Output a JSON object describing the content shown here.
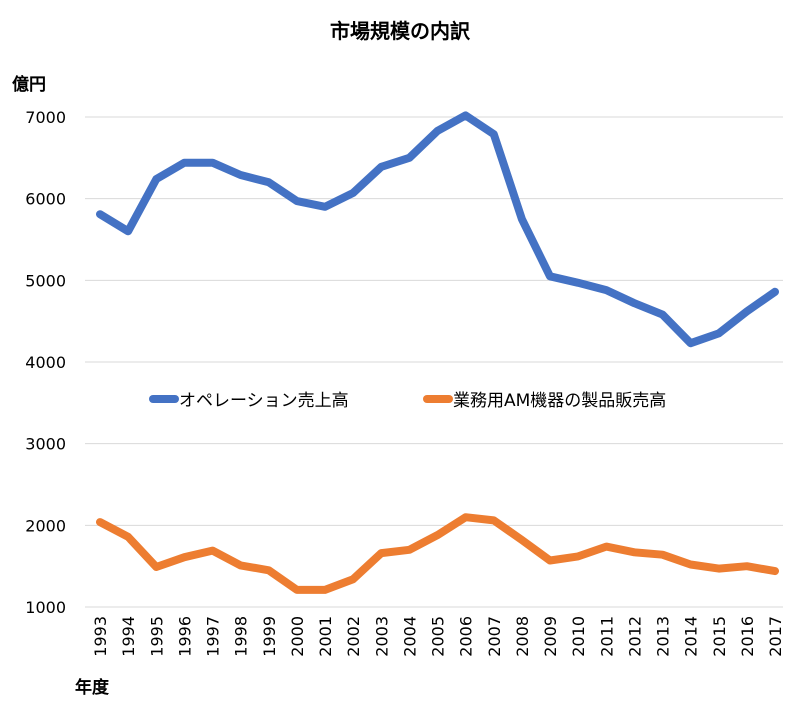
{
  "chart_data": {
    "type": "line",
    "title": "市場規模の内訳",
    "xlabel": "年度",
    "ylabel": "億円",
    "ylim": [
      1000,
      7000
    ],
    "yticks": [
      "1000",
      "2000",
      "3000",
      "4000",
      "5000",
      "6000",
      "7000"
    ],
    "grid": true,
    "legend_position": "center",
    "categories": [
      "1993",
      "1994",
      "1995",
      "1996",
      "1997",
      "1998",
      "1999",
      "2000",
      "2001",
      "2002",
      "2003",
      "2004",
      "2005",
      "2006",
      "2007",
      "2008",
      "2009",
      "2010",
      "2011",
      "2012",
      "2013",
      "2014",
      "2015",
      "2016",
      "2017"
    ],
    "series": [
      {
        "name": "オペレーション売上高",
        "color": "#4472C4",
        "values": [
          5810,
          5600,
          6240,
          6440,
          6440,
          6290,
          6200,
          5970,
          5900,
          6070,
          6390,
          6500,
          6830,
          7020,
          6790,
          5750,
          5050,
          4970,
          4880,
          4720,
          4580,
          4230,
          4350,
          4620,
          4860
        ]
      },
      {
        "name": "業務用AM機器の製品販売高",
        "color": "#ED7D31",
        "values": [
          2040,
          1860,
          1490,
          1610,
          1690,
          1510,
          1450,
          1210,
          1210,
          1340,
          1660,
          1700,
          1880,
          2100,
          2060,
          1820,
          1570,
          1620,
          1740,
          1670,
          1640,
          1520,
          1470,
          1500,
          1440
        ]
      }
    ]
  }
}
